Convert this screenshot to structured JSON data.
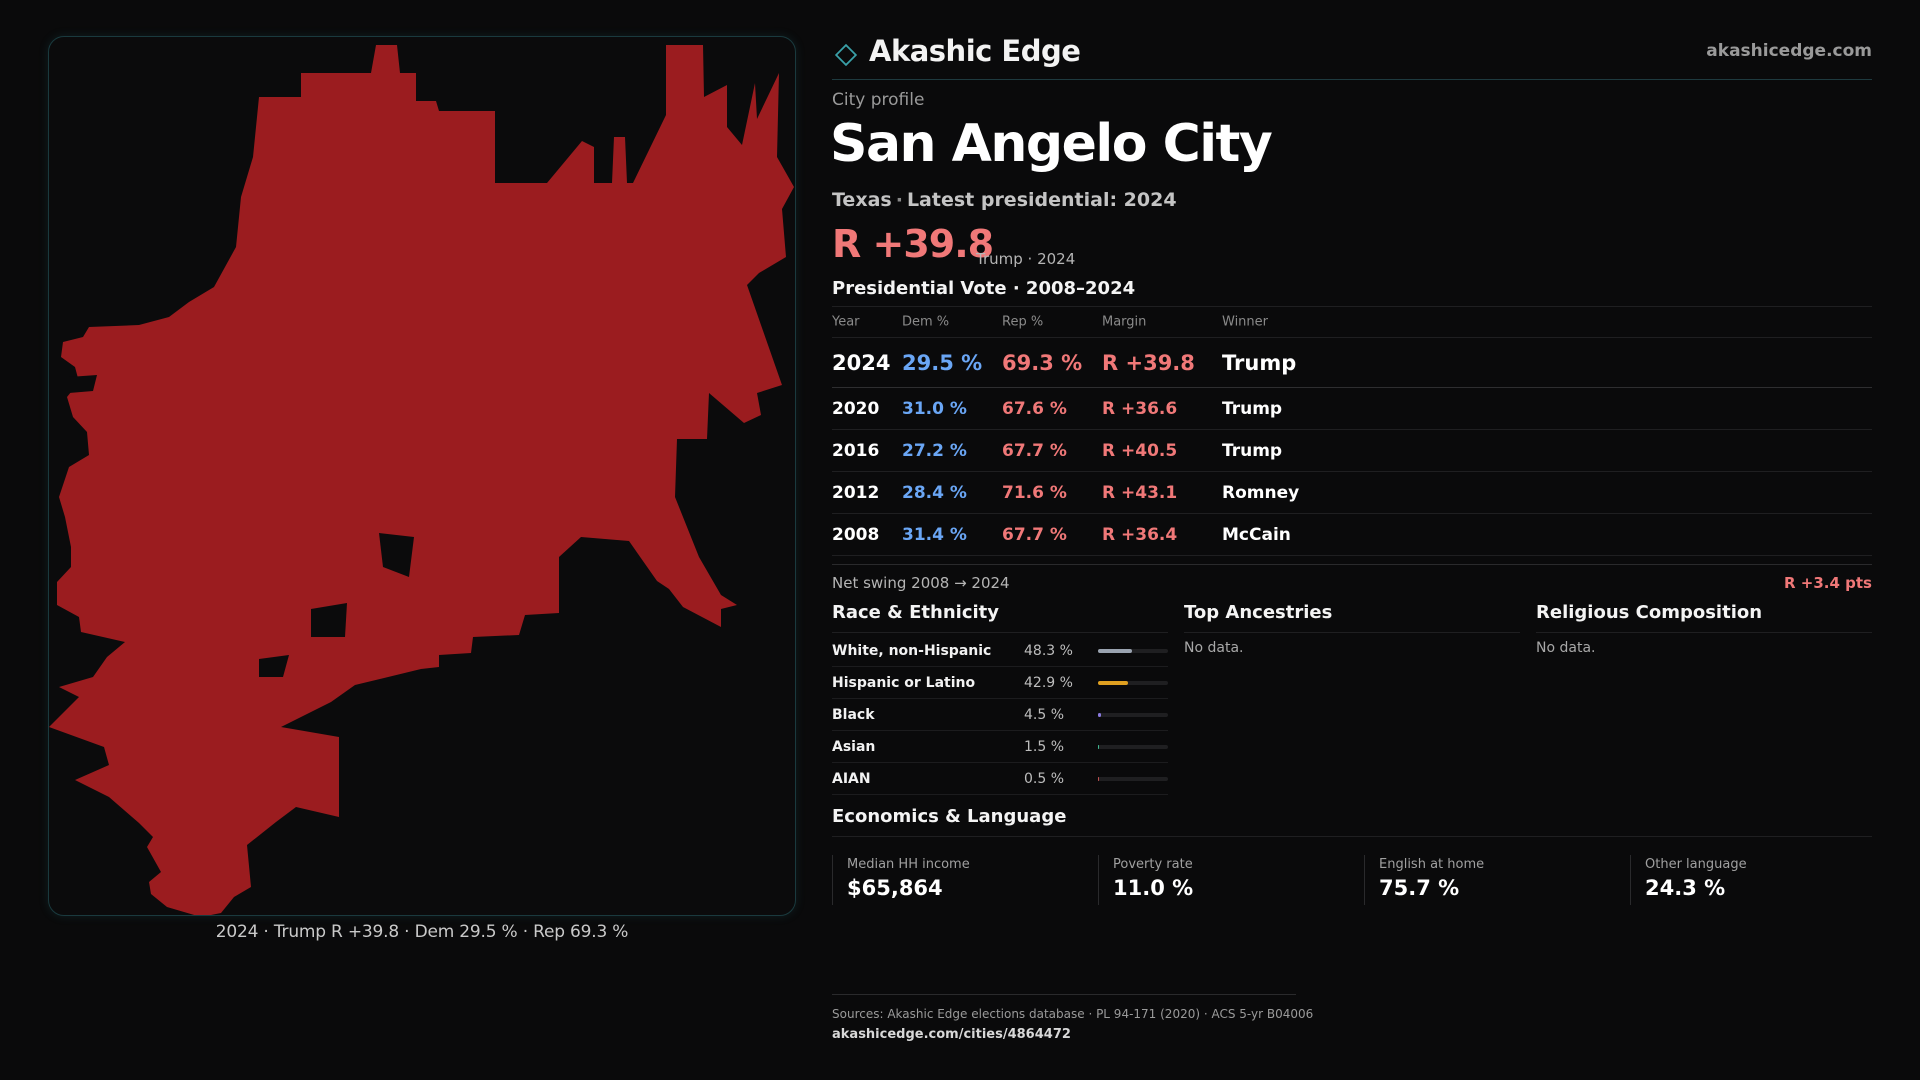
{
  "brand": {
    "name": "Akashic Edge",
    "url": "akashicedge.com",
    "accent": "#3aa0a8"
  },
  "profile": {
    "kicker": "City profile",
    "city": "San Angelo City",
    "state": "Texas",
    "latest": "Latest presidential: 2024",
    "margin": "R +39.8",
    "margin_note": "Trump · 2024"
  },
  "map": {
    "fill_color": "#9b1c1f",
    "caption": "2024 · Trump R +39.8 · Dem 29.5 % · Rep 69.3 %"
  },
  "presidential": {
    "title": "Presidential Vote · 2008–2024",
    "headers": {
      "year": "Year",
      "dem": "Dem %",
      "rep": "Rep %",
      "margin": "Margin",
      "winner": "Winner"
    },
    "rows": [
      {
        "year": "2024",
        "dem": "29.5 %",
        "rep": "69.3 %",
        "margin": "R +39.8",
        "winner": "Trump"
      },
      {
        "year": "2020",
        "dem": "31.0 %",
        "rep": "67.6 %",
        "margin": "R +36.6",
        "winner": "Trump"
      },
      {
        "year": "2016",
        "dem": "27.2 %",
        "rep": "67.7 %",
        "margin": "R +40.5",
        "winner": "Trump"
      },
      {
        "year": "2012",
        "dem": "28.4 %",
        "rep": "71.6 %",
        "margin": "R +43.1",
        "winner": "Romney"
      },
      {
        "year": "2008",
        "dem": "31.4 %",
        "rep": "67.7 %",
        "margin": "R +36.4",
        "winner": "McCain"
      }
    ],
    "dem_color": "#6aa6f5",
    "rep_color": "#f07878"
  },
  "swing": {
    "label": "Net swing 2008 → 2024",
    "value": "R +3.4 pts"
  },
  "race": {
    "title": "Race & Ethnicity",
    "rows": [
      {
        "name": "White, non-Hispanic",
        "pct": "48.3 %",
        "value": 48.3,
        "color": "#9aa3b0"
      },
      {
        "name": "Hispanic or Latino",
        "pct": "42.9 %",
        "value": 42.9,
        "color": "#e0a020"
      },
      {
        "name": "Black",
        "pct": "4.5 %",
        "value": 4.5,
        "color": "#8b7be0"
      },
      {
        "name": "Asian",
        "pct": "1.5 %",
        "value": 1.5,
        "color": "#3fb890"
      },
      {
        "name": "AIAN",
        "pct": "0.5 %",
        "value": 0.5,
        "color": "#c05050"
      }
    ]
  },
  "ancestries": {
    "title": "Top Ancestries",
    "empty": "No data."
  },
  "religion": {
    "title": "Religious Composition",
    "empty": "No data."
  },
  "economics": {
    "title": "Economics & Language",
    "cards": [
      {
        "label": "Median HH income",
        "value": "$65,864"
      },
      {
        "label": "Poverty rate",
        "value": "11.0 %"
      },
      {
        "label": "English at home",
        "value": "75.7 %"
      },
      {
        "label": "Other language",
        "value": "24.3 %"
      }
    ]
  },
  "sources": {
    "text": "Sources: Akashic Edge elections database · PL 94-171 (2020) · ACS 5-yr B04006",
    "url": "akashicedge.com/cities/4864472"
  }
}
